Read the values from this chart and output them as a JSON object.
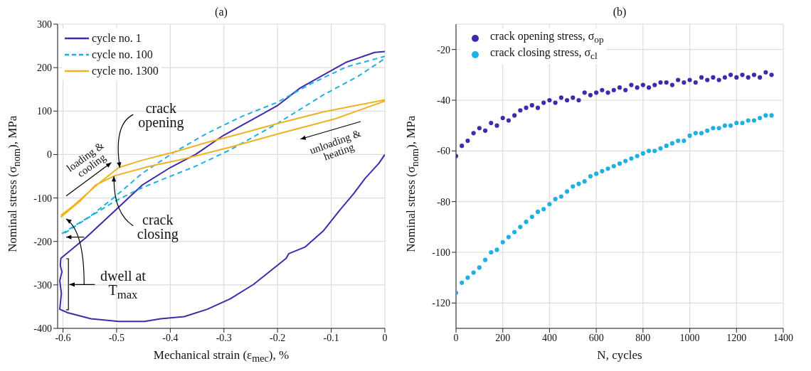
{
  "chart_data": [
    {
      "type": "line",
      "title": "(a)",
      "xlabel": "Mechanical strain (ε$_{mec}$), %",
      "ylabel": "Nominal stress (σ$_{nom}$), MPa",
      "xlim": [
        -0.61,
        0
      ],
      "xticks": [
        -0.6,
        -0.5,
        -0.4,
        -0.3,
        -0.2,
        -0.1,
        0
      ],
      "ylim": [
        -400,
        300
      ],
      "yticks": [
        -400,
        -300,
        -200,
        -100,
        0,
        100,
        200,
        300
      ],
      "grid": true,
      "legend": "top left",
      "series": [
        {
          "name": "cycle no.  1",
          "color": "#3d2bab",
          "line_style": "solid",
          "x": [
            0,
            -0.011,
            -0.037,
            -0.058,
            -0.084,
            -0.115,
            -0.149,
            -0.179,
            -0.184,
            -0.245,
            -0.288,
            -0.331,
            -0.374,
            -0.418,
            -0.448,
            -0.496,
            -0.548,
            -0.591,
            -0.606,
            -0.603,
            -0.606,
            -0.602,
            -0.605,
            -0.604,
            -0.556,
            -0.504,
            -0.452,
            -0.4,
            -0.353,
            -0.301,
            -0.245,
            -0.201,
            -0.158,
            -0.115,
            -0.071,
            -0.019,
            0
          ],
          "values": [
            0,
            -20,
            -55,
            -90,
            -128,
            -176,
            -213,
            -228,
            -239,
            -299,
            -332,
            -356,
            -373,
            -378,
            -384,
            -384,
            -378,
            -364,
            -356,
            -320,
            -290,
            -270,
            -255,
            -239,
            -190,
            -130,
            -70,
            -30,
            0,
            44,
            82,
            112,
            153,
            183,
            213,
            235,
            237
          ]
        },
        {
          "name": "cycle no.  100",
          "color": "#1fb0e3",
          "line_style": "dashed",
          "x": [
            -0.602,
            -0.548,
            -0.504,
            -0.452,
            -0.392,
            -0.331,
            -0.266,
            -0.201,
            -0.136,
            -0.071,
            0,
            0,
            -0.05,
            -0.115,
            -0.201,
            -0.288,
            -0.353,
            -0.418,
            -0.461,
            -0.504,
            -0.569,
            -0.602
          ],
          "values": [
            -182,
            -141,
            -98,
            -43,
            6,
            49,
            88,
            120,
            164,
            202,
            226,
            221,
            180,
            137,
            71,
            11,
            -27,
            -59,
            -81,
            -108,
            -158,
            -185
          ]
        },
        {
          "name": "cycle no.  1300",
          "color": "#efb322",
          "line_style": "solid",
          "x": [
            -0.604,
            -0.582,
            -0.535,
            -0.496,
            -0.452,
            -0.392,
            -0.331,
            -0.266,
            -0.201,
            -0.115,
            0,
            0,
            -0.093,
            -0.201,
            -0.288,
            -0.374,
            -0.439,
            -0.504,
            -0.539,
            -0.569,
            -0.604
          ],
          "values": [
            -140,
            -119,
            -68,
            -30,
            -13,
            6,
            28,
            49,
            71,
            98,
            126,
            123,
            82,
            47,
            17,
            -10,
            -27,
            -49,
            -70,
            -108,
            -144
          ]
        }
      ],
      "annotations": [
        {
          "text": "crack opening",
          "x": -0.494,
          "y": -30
        },
        "loading & cooling",
        "unloading & heating",
        {
          "text": "crack closing",
          "x": -0.505,
          "y": -50
        },
        "dwell at T$_{max}$"
      ]
    },
    {
      "type": "scatter",
      "title": "(b)",
      "xlabel": "N, cycles",
      "ylabel": "Nominal stress (σ$_{nom}$), MPa",
      "xlim": [
        0,
        1400
      ],
      "xticks": [
        0,
        200,
        400,
        600,
        800,
        1000,
        1200,
        1400
      ],
      "ylim": [
        -130,
        -10
      ],
      "yticks": [
        -120,
        -100,
        -80,
        -60,
        -40,
        -20
      ],
      "grid": true,
      "legend": "top left",
      "marker": "circle",
      "series": [
        {
          "name": "crack opening stress, σ$_{op}$",
          "color": "#3d2bab",
          "x": [
            0,
            25,
            50,
            75,
            100,
            125,
            150,
            175,
            200,
            225,
            250,
            275,
            300,
            325,
            350,
            375,
            400,
            425,
            450,
            475,
            500,
            525,
            550,
            575,
            600,
            625,
            650,
            675,
            700,
            725,
            750,
            775,
            800,
            825,
            850,
            875,
            900,
            925,
            950,
            975,
            1000,
            1025,
            1050,
            1075,
            1100,
            1125,
            1150,
            1175,
            1200,
            1225,
            1250,
            1275,
            1300,
            1325,
            1350
          ],
          "values": [
            -62,
            -58,
            -56,
            -53,
            -51,
            -52,
            -49,
            -50,
            -47,
            -48,
            -46,
            -44,
            -43,
            -42,
            -43,
            -41,
            -40,
            -41,
            -39,
            -40,
            -39,
            -40,
            -37,
            -38,
            -37,
            -36,
            -37,
            -36,
            -35,
            -36,
            -34,
            -35,
            -34,
            -35,
            -34,
            -33,
            -33,
            -34,
            -32,
            -33,
            -32,
            -33,
            -31,
            -32,
            -31,
            -32,
            -31,
            -30,
            -31,
            -30,
            -31,
            -30,
            -31,
            -29,
            -30
          ]
        },
        {
          "name": "crack closing stress, σ$_{cl}$",
          "color": "#1fb0e3",
          "x": [
            0,
            25,
            50,
            75,
            100,
            125,
            150,
            175,
            200,
            225,
            250,
            275,
            300,
            325,
            350,
            375,
            400,
            425,
            450,
            475,
            500,
            525,
            550,
            575,
            600,
            625,
            650,
            675,
            700,
            725,
            750,
            775,
            800,
            825,
            850,
            875,
            900,
            925,
            950,
            975,
            1000,
            1025,
            1050,
            1075,
            1100,
            1125,
            1150,
            1175,
            1200,
            1225,
            1250,
            1275,
            1300,
            1325,
            1350
          ],
          "values": [
            -116,
            -112,
            -110,
            -108,
            -106,
            -103,
            -100,
            -99,
            -96,
            -94,
            -92,
            -90,
            -88,
            -86,
            -84,
            -83,
            -81,
            -79,
            -78,
            -76,
            -74,
            -73,
            -72,
            -70,
            -69,
            -68,
            -67,
            -66,
            -65,
            -64,
            -63,
            -62,
            -61,
            -60,
            -60,
            -59,
            -58,
            -57,
            -56,
            -56,
            -54,
            -53,
            -53,
            -52,
            -51,
            -51,
            -50,
            -50,
            -49,
            -49,
            -48,
            -48,
            -47,
            -46,
            -46
          ]
        }
      ]
    }
  ]
}
